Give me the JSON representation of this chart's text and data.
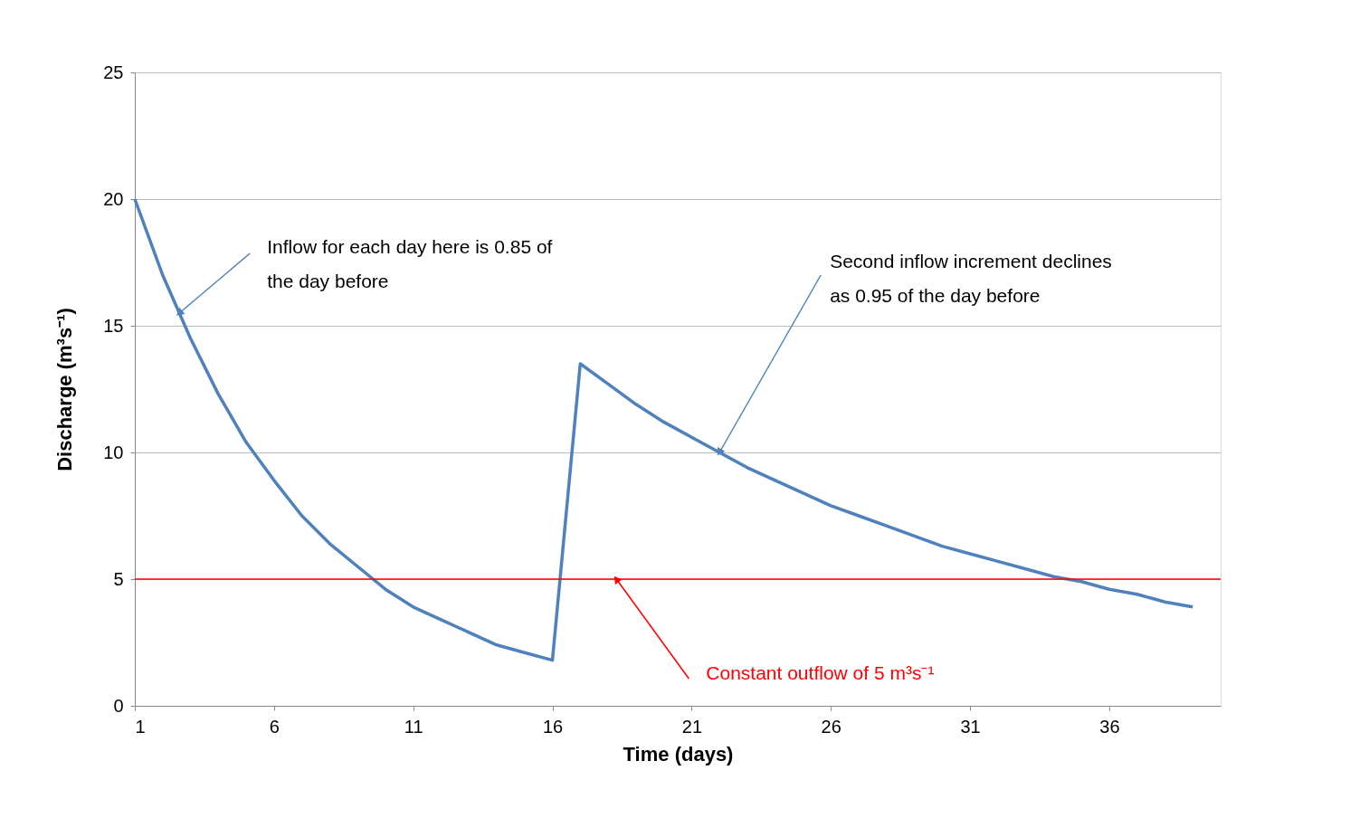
{
  "chart_data": {
    "type": "line",
    "xlabel": "Time (days)",
    "ylabel": "Discharge (m³s⁻¹)",
    "x": [
      1,
      2,
      3,
      4,
      5,
      6,
      7,
      8,
      9,
      10,
      11,
      12,
      13,
      14,
      15,
      16,
      17,
      18,
      19,
      20,
      21,
      22,
      23,
      24,
      25,
      26,
      27,
      28,
      29,
      30,
      31,
      32,
      33,
      34,
      35,
      36,
      37,
      38,
      39
    ],
    "series": [
      {
        "color": "#4f81bd",
        "values": [
          20.0,
          17.0,
          14.5,
          12.3,
          10.4,
          8.9,
          7.5,
          6.4,
          5.5,
          4.6,
          3.9,
          3.4,
          2.9,
          2.4,
          2.1,
          1.8,
          13.5,
          12.7,
          11.9,
          11.2,
          10.6,
          10.0,
          9.4,
          8.9,
          8.4,
          7.9,
          7.5,
          7.1,
          6.7,
          6.3,
          6.0,
          5.7,
          5.4,
          5.1,
          4.9,
          4.6,
          4.4,
          4.1,
          3.9
        ]
      }
    ],
    "xlim": [
      1,
      40
    ],
    "xticks": [
      1,
      6,
      11,
      16,
      21,
      26,
      31,
      36
    ],
    "ylim": [
      0,
      25
    ],
    "yticks": [
      0,
      5,
      10,
      15,
      20,
      25
    ],
    "grid": "y",
    "marker": "none",
    "line_style": "solid",
    "ref_lines": [
      {
        "axis": "y",
        "value": 5,
        "color": "#ff0000"
      }
    ],
    "annotations": [
      {
        "text": "Inflow for each day here is 0.85 of the day before",
        "x": 2.6,
        "y": 15.5
      },
      {
        "text": "Second inflow increment declines as 0.95 of the day before",
        "x": 22,
        "y": 10.0
      },
      {
        "text": "Constant outflow of 5 m³s⁻¹",
        "x": 18.3,
        "y": 5
      }
    ]
  }
}
